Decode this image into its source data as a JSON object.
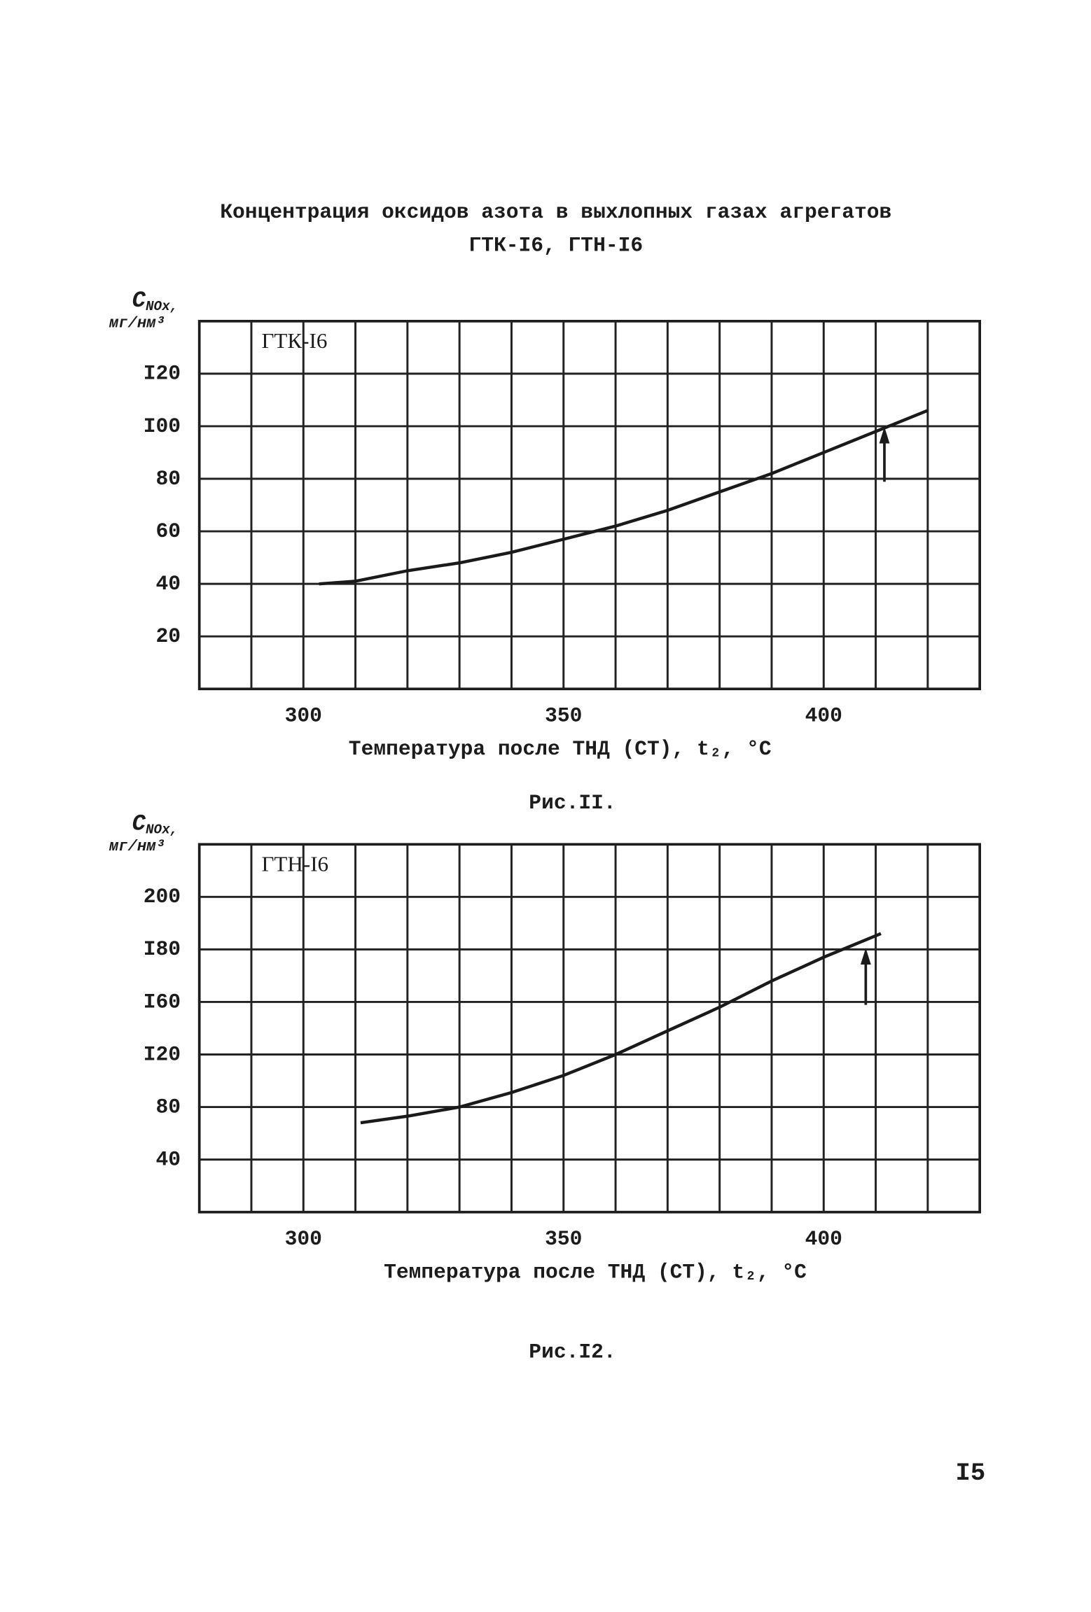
{
  "page_title": [
    "Концентрация оксидов азота в выхлопных газах агрегатов",
    "ГТК-I6, ГТН-I6"
  ],
  "page_number": "I5",
  "chart_data": [
    {
      "type": "line",
      "annotation": "ГТК-I6",
      "caption": "Рис.II.",
      "y_label_symbol": "C",
      "y_label_subscript": "NOx,",
      "y_label_unit": "мг/нм³",
      "x_label": "Температура после ТНД (СТ), t₂, °C",
      "xlim": [
        280,
        430
      ],
      "xticks": [
        300,
        350,
        400
      ],
      "xgrid": [
        290,
        300,
        310,
        320,
        330,
        340,
        350,
        360,
        370,
        380,
        390,
        400,
        410,
        420
      ],
      "ylim": [
        0,
        140
      ],
      "yticks": [
        20,
        40,
        60,
        80,
        {
          "value": 100,
          "label": "I00"
        },
        {
          "value": 120,
          "label": "I20"
        }
      ],
      "grid": true,
      "series": [
        {
          "color": "#1a1a1a",
          "x": [
            303,
            310,
            320,
            330,
            340,
            350,
            360,
            370,
            380,
            390,
            400,
            410,
            420
          ],
          "values": [
            40,
            41,
            45,
            48,
            52,
            57,
            62,
            68,
            75,
            82,
            90,
            98,
            106
          ]
        }
      ]
    },
    {
      "type": "line",
      "annotation": "ГТН-I6",
      "caption": "Рис.I2.",
      "y_label_symbol": "C",
      "y_label_subscript": "NOx,",
      "y_label_unit": "мг/нм³",
      "x_label": "Температура после ТНД (СТ), t₂, °C",
      "xlim": [
        280,
        430
      ],
      "xticks": [
        300,
        350,
        400
      ],
      "xgrid": [
        290,
        300,
        310,
        320,
        330,
        340,
        350,
        360,
        370,
        380,
        390,
        400,
        410,
        420
      ],
      "ylim": [
        0,
        220
      ],
      "yticks": [
        40,
        80,
        {
          "value": 120,
          "label": "I20"
        },
        {
          "value": 160,
          "label": "I60"
        },
        {
          "value": 180,
          "label": "I80"
        },
        200
      ],
      "grid": true,
      "series": [
        {
          "color": "#1a1a1a",
          "x": [
            311,
            320,
            330,
            340,
            350,
            360,
            370,
            380,
            390,
            400,
            411
          ],
          "values": [
            68,
            73,
            80,
            91,
            104,
            120,
            138,
            156,
            168,
            177,
            186
          ]
        }
      ]
    }
  ]
}
